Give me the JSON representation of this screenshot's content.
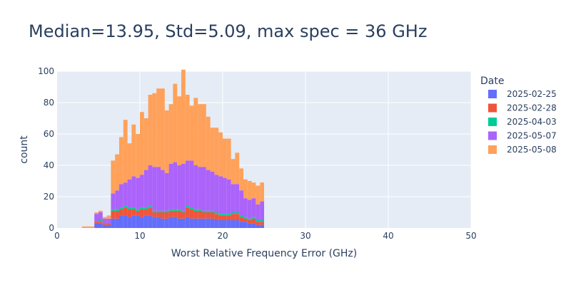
{
  "chart_data": {
    "type": "bar",
    "title": "Median=13.95, Std=5.09, max spec = 36 GHz",
    "xlabel": "Worst Relative Frequency Error (GHz)",
    "ylabel": "count",
    "xlim": [
      0,
      50
    ],
    "ylim": [
      0,
      100
    ],
    "x_ticks": [
      0,
      10,
      20,
      30,
      40,
      50
    ],
    "y_ticks": [
      0,
      20,
      40,
      60,
      80,
      100
    ],
    "bin_start": 3,
    "bin_width": 0.5,
    "stacked": true,
    "grid": true,
    "legend_title": "Date",
    "legend_position": "right",
    "series": [
      {
        "name": "2025-02-25",
        "color": "#636efa",
        "values": [
          0,
          0,
          0,
          3,
          3,
          2,
          2,
          6,
          6,
          8,
          8,
          7,
          8,
          8,
          7,
          8,
          8,
          7,
          7,
          6,
          6,
          7,
          7,
          6,
          6,
          7,
          6,
          6,
          6,
          6,
          6,
          6,
          5,
          5,
          5,
          5,
          5,
          5,
          4,
          4,
          3,
          3,
          2,
          2
        ]
      },
      {
        "name": "2025-02-28",
        "color": "#EF553B",
        "values": [
          0,
          0,
          0,
          1,
          1,
          1,
          1,
          5,
          5,
          4,
          5,
          5,
          4,
          3,
          5,
          4,
          5,
          3,
          3,
          4,
          4,
          4,
          4,
          5,
          4,
          6,
          6,
          5,
          5,
          4,
          4,
          4,
          4,
          3,
          3,
          3,
          4,
          4,
          3,
          2,
          2,
          3,
          2,
          2
        ]
      },
      {
        "name": "2025-04-03",
        "color": "#00cc96",
        "values": [
          0,
          0,
          0,
          0,
          1,
          0,
          0,
          1,
          1,
          1,
          1,
          1,
          1,
          1,
          1,
          1,
          1,
          1,
          1,
          1,
          1,
          1,
          1,
          1,
          1,
          1,
          1,
          1,
          1,
          1,
          1,
          1,
          1,
          1,
          1,
          1,
          1,
          1,
          1,
          1,
          1,
          1,
          1,
          1
        ]
      },
      {
        "name": "2025-05-07",
        "color": "#ab63fa",
        "values": [
          0,
          0,
          0,
          5,
          5,
          3,
          3,
          10,
          12,
          15,
          15,
          18,
          20,
          20,
          21,
          24,
          26,
          28,
          28,
          26,
          24,
          29,
          30,
          28,
          30,
          29,
          30,
          28,
          27,
          28,
          26,
          25,
          24,
          24,
          23,
          22,
          18,
          18,
          16,
          12,
          12,
          12,
          10,
          12
        ]
      },
      {
        "name": "2025-05-08",
        "color": "#FFA15A",
        "values": [
          1,
          1,
          1,
          1,
          1,
          1,
          2,
          21,
          23,
          30,
          40,
          23,
          33,
          28,
          40,
          33,
          45,
          47,
          50,
          52,
          40,
          38,
          50,
          44,
          60,
          42,
          35,
          43,
          40,
          40,
          34,
          28,
          30,
          28,
          25,
          26,
          16,
          20,
          14,
          12,
          12,
          10,
          12,
          12
        ]
      }
    ]
  }
}
